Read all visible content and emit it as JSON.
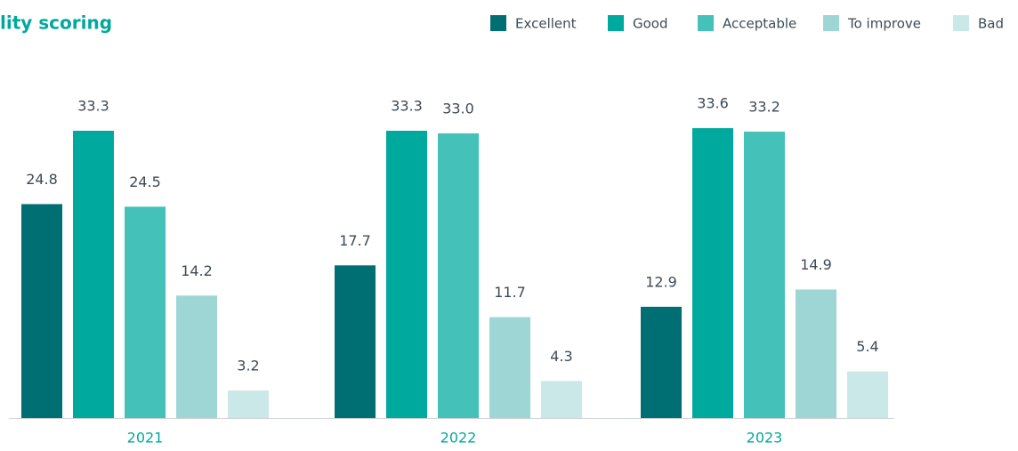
{
  "chart_data": {
    "type": "bar",
    "title": "lity scoring",
    "categories": [
      "2021",
      "2022",
      "2023"
    ],
    "series": [
      {
        "name": "Excellent",
        "color": "#006f74",
        "values": [
          24.8,
          17.7,
          12.9
        ],
        "value_labels": [
          "24.8",
          "17.7",
          "12.9"
        ]
      },
      {
        "name": "Good",
        "color": "#00a99d",
        "values": [
          33.3,
          33.3,
          33.6
        ],
        "value_labels": [
          "33.3",
          "33.3",
          "33.6"
        ]
      },
      {
        "name": "Acceptable",
        "color": "#44c1b8",
        "values": [
          24.5,
          33.0,
          33.2
        ],
        "value_labels": [
          "24.5",
          "33.0",
          "33.2"
        ]
      },
      {
        "name": "To improve",
        "color": "#9dd6d5",
        "values": [
          14.2,
          11.7,
          14.9
        ],
        "value_labels": [
          "14.2",
          "11.7",
          "14.9"
        ]
      },
      {
        "name": "Bad",
        "color": "#cbe8e8",
        "values": [
          3.2,
          4.3,
          5.4
        ],
        "value_labels": [
          "3.2",
          "4.3",
          "5.4"
        ]
      }
    ]
  }
}
